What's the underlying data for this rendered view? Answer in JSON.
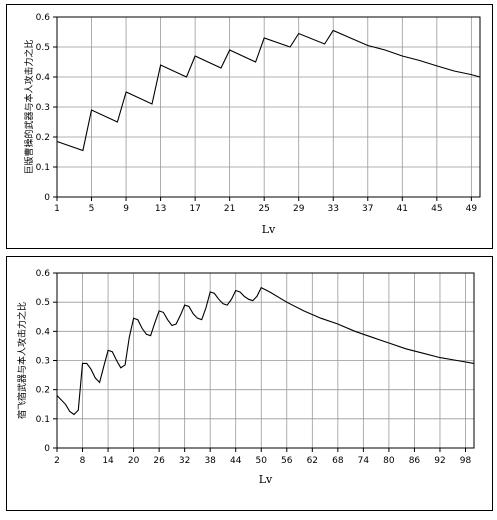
{
  "chart_data": [
    {
      "type": "line",
      "xlabel": "Lv",
      "ylabel": "巨版曹操的武器与本人攻击力之比",
      "xlim": [
        1,
        50
      ],
      "ylim": [
        0,
        0.6
      ],
      "yticks": [
        "0",
        "0.1",
        "0.2",
        "0.3",
        "0.4",
        "0.5",
        "0.6"
      ],
      "xticks": [
        "1",
        "5",
        "9",
        "13",
        "17",
        "21",
        "25",
        "29",
        "33",
        "37",
        "41",
        "45",
        "49"
      ],
      "xtick_values": [
        1,
        5,
        9,
        13,
        17,
        21,
        25,
        29,
        33,
        37,
        41,
        45,
        49
      ],
      "grid": true,
      "series": [
        {
          "x": [
            1,
            4,
            5,
            8,
            9,
            12,
            13,
            16,
            17,
            20,
            21,
            24,
            25,
            28,
            29,
            32,
            33,
            35,
            37,
            39,
            41,
            43,
            45,
            47,
            49,
            50
          ],
          "y": [
            0.185,
            0.155,
            0.29,
            0.25,
            0.35,
            0.31,
            0.44,
            0.4,
            0.47,
            0.43,
            0.49,
            0.45,
            0.53,
            0.5,
            0.545,
            0.51,
            0.555,
            0.53,
            0.505,
            0.49,
            0.47,
            0.455,
            0.437,
            0.42,
            0.408,
            0.4
          ]
        }
      ]
    },
    {
      "type": "line",
      "xlabel": "Lv",
      "ylabel": "宿飞宿武器与本人攻击力之比",
      "xlim": [
        2,
        100
      ],
      "ylim": [
        0,
        0.6
      ],
      "yticks": [
        "0",
        "0.1",
        "0.2",
        "0.3",
        "0.4",
        "0.5",
        "0.6"
      ],
      "xticks": [
        "2",
        "8",
        "14",
        "20",
        "26",
        "32",
        "38",
        "44",
        "50",
        "56",
        "62",
        "68",
        "74",
        "80",
        "86",
        "92",
        "98"
      ],
      "xtick_values": [
        2,
        8,
        14,
        20,
        26,
        32,
        38,
        44,
        50,
        56,
        62,
        68,
        74,
        80,
        86,
        92,
        98
      ],
      "grid": true,
      "series": [
        {
          "x": [
            2,
            4,
            5,
            6,
            7,
            8,
            9,
            10,
            11,
            12,
            13,
            14,
            15,
            16,
            17,
            18,
            19,
            20,
            21,
            22,
            23,
            24,
            25,
            26,
            27,
            28,
            29,
            30,
            31,
            32,
            33,
            34,
            35,
            36,
            37,
            38,
            39,
            40,
            41,
            42,
            43,
            44,
            45,
            46,
            47,
            48,
            49,
            50,
            52,
            56,
            60,
            64,
            68,
            72,
            76,
            80,
            84,
            88,
            92,
            96,
            100
          ],
          "y": [
            0.18,
            0.15,
            0.125,
            0.115,
            0.13,
            0.29,
            0.29,
            0.27,
            0.24,
            0.225,
            0.28,
            0.335,
            0.33,
            0.3,
            0.275,
            0.285,
            0.38,
            0.445,
            0.44,
            0.41,
            0.39,
            0.385,
            0.43,
            0.47,
            0.465,
            0.44,
            0.42,
            0.425,
            0.455,
            0.49,
            0.485,
            0.46,
            0.445,
            0.44,
            0.48,
            0.535,
            0.53,
            0.51,
            0.495,
            0.49,
            0.51,
            0.54,
            0.535,
            0.52,
            0.51,
            0.505,
            0.52,
            0.55,
            0.535,
            0.5,
            0.47,
            0.445,
            0.425,
            0.4,
            0.38,
            0.36,
            0.34,
            0.325,
            0.31,
            0.3,
            0.29
          ]
        }
      ]
    }
  ]
}
